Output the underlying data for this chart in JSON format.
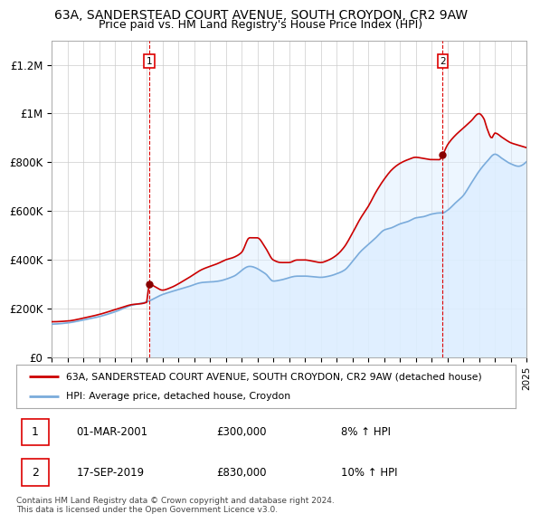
{
  "title": "63A, SANDERSTEAD COURT AVENUE, SOUTH CROYDON, CR2 9AW",
  "subtitle": "Price paid vs. HM Land Registry's House Price Index (HPI)",
  "ylim": [
    0,
    1300000
  ],
  "yticks": [
    0,
    200000,
    400000,
    600000,
    800000,
    1000000,
    1200000
  ],
  "ytick_labels": [
    "£0",
    "£200K",
    "£400K",
    "£600K",
    "£800K",
    "£1M",
    "£1.2M"
  ],
  "vline_years": [
    2001.167,
    2019.708
  ],
  "vline_color": "#dd0000",
  "line_color_property": "#cc0000",
  "line_color_hpi": "#7aabdb",
  "fill_color_hpi": "#ddeeff",
  "dot_color": "#880000",
  "legend_label_property": "63A, SANDERSTEAD COURT AVENUE, SOUTH CROYDON, CR2 9AW (detached house)",
  "legend_label_hpi": "HPI: Average price, detached house, Croydon",
  "transaction1_label": "1",
  "transaction1_date": "01-MAR-2001",
  "transaction1_price": "£300,000",
  "transaction1_hpi": "8% ↑ HPI",
  "transaction1_year": 2001.167,
  "transaction1_value": 300000,
  "transaction2_label": "2",
  "transaction2_date": "17-SEP-2019",
  "transaction2_price": "£830,000",
  "transaction2_hpi": "10% ↑ HPI",
  "transaction2_year": 2019.708,
  "transaction2_value": 830000,
  "footer_text": "Contains HM Land Registry data © Crown copyright and database right 2024.\nThis data is licensed under the Open Government Licence v3.0.",
  "title_fontsize": 10,
  "subtitle_fontsize": 9,
  "background_color": "#ffffff"
}
